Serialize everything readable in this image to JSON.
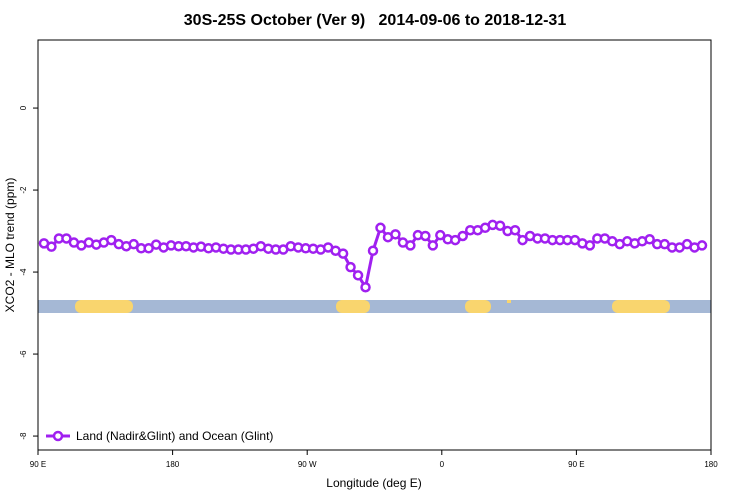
{
  "chart_data": {
    "type": "line",
    "title": "30S-25S October (Ver 9)   2014-09-06 to 2018-12-31",
    "x_label": "Longitude (deg E)",
    "y_label": "XCO2 - MLO trend (ppm)",
    "xlim": [
      90,
      540
    ],
    "ylim": [
      -8.34,
      1.66
    ],
    "xticks": [
      {
        "value": 90,
        "label": "90 E"
      },
      {
        "value": 180,
        "label": "180"
      },
      {
        "value": 270,
        "label": "90 W"
      },
      {
        "value": 360,
        "label": "0"
      },
      {
        "value": 450,
        "label": "90 E"
      },
      {
        "value": 540,
        "label": "180"
      }
    ],
    "yticks": [
      0,
      -2,
      -4,
      -6,
      -8
    ],
    "legend_position": "bottomleft",
    "x": [
      94,
      99,
      104,
      109,
      114,
      119,
      124,
      129,
      134,
      139,
      144,
      149,
      154,
      159,
      164,
      169,
      174,
      179,
      184,
      189,
      194,
      199,
      204,
      209,
      214,
      219,
      224,
      229,
      234,
      239,
      244,
      249,
      254,
      259,
      264,
      269,
      274,
      279,
      284,
      289,
      294,
      299,
      304,
      309,
      314,
      319,
      324,
      329,
      334,
      339,
      344,
      349,
      354,
      359,
      364,
      369,
      374,
      379,
      384,
      389,
      394,
      399,
      404,
      409,
      414,
      419,
      424,
      429,
      434,
      439,
      444,
      449,
      454,
      459,
      464,
      469,
      474,
      479,
      484,
      489,
      494,
      499,
      504,
      509,
      514,
      519,
      524,
      529,
      534
    ],
    "series": [
      {
        "name": "Land (Nadir&Glint) and Ocean (Glint)",
        "color": "#a020f0",
        "values": [
          -3.3,
          -3.38,
          -3.18,
          -3.18,
          -3.28,
          -3.35,
          -3.28,
          -3.33,
          -3.28,
          -3.22,
          -3.32,
          -3.37,
          -3.32,
          -3.42,
          -3.42,
          -3.33,
          -3.4,
          -3.35,
          -3.37,
          -3.37,
          -3.4,
          -3.38,
          -3.42,
          -3.4,
          -3.43,
          -3.45,
          -3.45,
          -3.45,
          -3.43,
          -3.37,
          -3.43,
          -3.45,
          -3.45,
          -3.37,
          -3.4,
          -3.42,
          -3.43,
          -3.45,
          -3.4,
          -3.48,
          -3.55,
          -3.88,
          -4.08,
          -4.37,
          -3.48,
          -2.92,
          -3.15,
          -3.08,
          -3.28,
          -3.35,
          -3.1,
          -3.12,
          -3.35,
          -3.1,
          -3.2,
          -3.22,
          -3.12,
          -2.98,
          -2.98,
          -2.92,
          -2.85,
          -2.87,
          -3.0,
          -2.98,
          -3.22,
          -3.12,
          -3.18,
          -3.18,
          -3.22,
          -3.22,
          -3.22,
          -3.22,
          -3.3,
          -3.35,
          -3.18,
          -3.18,
          -3.25,
          -3.32,
          -3.25,
          -3.3,
          -3.25,
          -3.2,
          -3.32,
          -3.32,
          -3.4,
          -3.4,
          -3.32,
          -3.4,
          -3.35
        ]
      }
    ]
  }
}
